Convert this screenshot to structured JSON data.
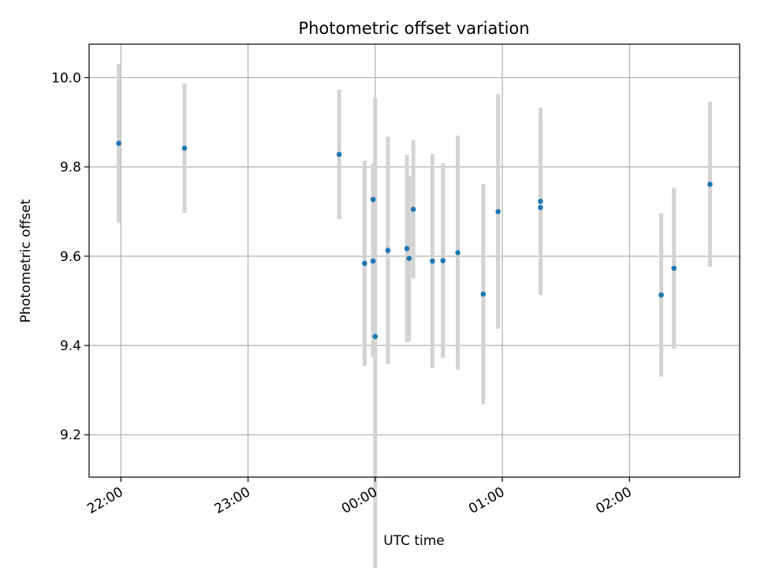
{
  "chart_data": {
    "type": "scatter",
    "title": "Photometric offset variation",
    "xlabel": "UTC time",
    "ylabel": "Photometric offset",
    "x_axis": {
      "kind": "time",
      "range": [
        "21:45",
        "02:52"
      ],
      "ticks": [
        "22:00",
        "23:00",
        "00:00",
        "01:00",
        "02:00"
      ]
    },
    "y_axis": {
      "range": [
        9.105,
        10.075
      ],
      "ticks": [
        "9.2",
        "9.4",
        "9.6",
        "9.8",
        "10.0"
      ]
    },
    "grid": true,
    "colors": {
      "point": "#1f77b4",
      "errorbar": "#d3d3d3",
      "grid": "#b0b0b0"
    },
    "points": [
      {
        "time": "21:59",
        "y": 9.853,
        "err": 0.178
      },
      {
        "time": "22:30",
        "y": 9.842,
        "err": 0.145
      },
      {
        "time": "23:43",
        "y": 9.828,
        "err": 0.145
      },
      {
        "time": "23:55",
        "y": 9.584,
        "err": 0.23
      },
      {
        "time": "23:59",
        "y": 9.589,
        "err": 0.215
      },
      {
        "time": "23:59",
        "y": 9.727,
        "err": 0.08
      },
      {
        "time": "00:00",
        "y": 9.42,
        "err": 0.535
      },
      {
        "time": "00:06",
        "y": 9.613,
        "err": 0.255
      },
      {
        "time": "00:15",
        "y": 9.617,
        "err": 0.21
      },
      {
        "time": "00:16",
        "y": 9.595,
        "err": 0.185
      },
      {
        "time": "00:18",
        "y": 9.705,
        "err": 0.155
      },
      {
        "time": "00:27",
        "y": 9.589,
        "err": 0.24
      },
      {
        "time": "00:32",
        "y": 9.59,
        "err": 0.218
      },
      {
        "time": "00:39",
        "y": 9.608,
        "err": 0.262
      },
      {
        "time": "00:51",
        "y": 9.515,
        "err": 0.247
      },
      {
        "time": "00:58",
        "y": 9.7,
        "err": 0.263
      },
      {
        "time": "01:18",
        "y": 9.723,
        "err": 0.21
      },
      {
        "time": "01:18",
        "y": 9.709,
        "err": 0.195
      },
      {
        "time": "02:15",
        "y": 9.513,
        "err": 0.183
      },
      {
        "time": "02:21",
        "y": 9.573,
        "err": 0.18
      },
      {
        "time": "02:38",
        "y": 9.761,
        "err": 0.185
      }
    ]
  }
}
